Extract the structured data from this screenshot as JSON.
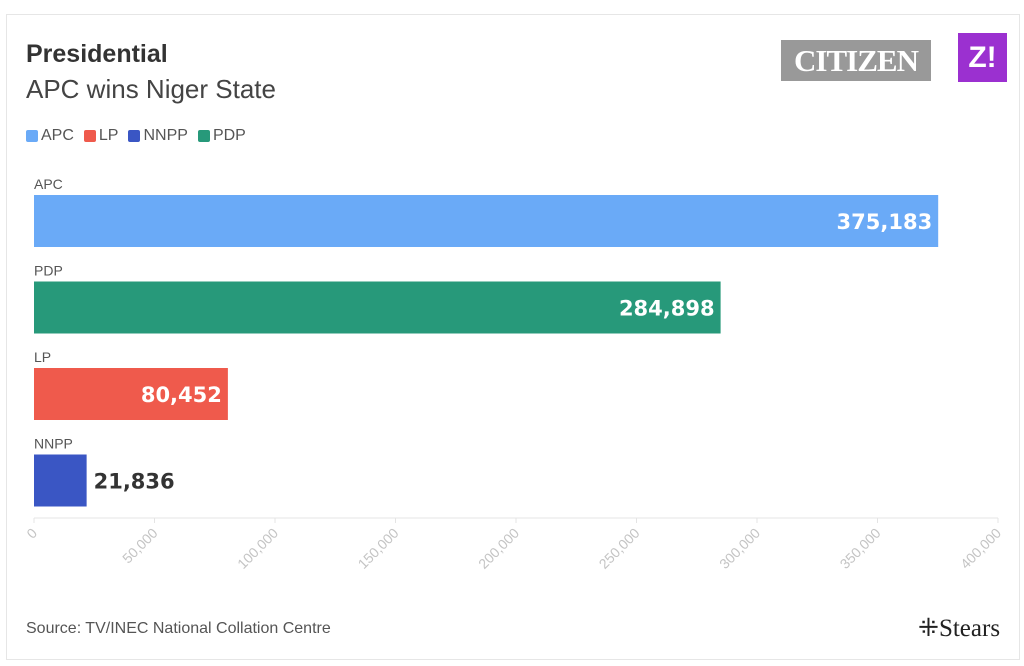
{
  "header": {
    "title": "Presidential",
    "subtitle": "APC wins Niger State"
  },
  "logos": {
    "citizen": "CITIZEN",
    "z": "Z!",
    "stears": "Stears"
  },
  "source": "Source: TV/INEC National Collation Centre",
  "chart_data": {
    "type": "bar",
    "orientation": "horizontal",
    "title": "Presidential",
    "subtitle": "APC wins Niger State",
    "legend": [
      {
        "name": "APC",
        "color": "#6aaaf7"
      },
      {
        "name": "LP",
        "color": "#ef5a4c"
      },
      {
        "name": "NNPP",
        "color": "#3a56c4"
      },
      {
        "name": "PDP",
        "color": "#27997a"
      }
    ],
    "categories": [
      "APC",
      "PDP",
      "LP",
      "NNPP"
    ],
    "values": [
      375183,
      284898,
      80452,
      21836
    ],
    "value_labels": [
      "375,183",
      "284,898",
      "80,452",
      "21,836"
    ],
    "colors": [
      "#6aaaf7",
      "#27997a",
      "#ef5a4c",
      "#3a56c4"
    ],
    "xlim": [
      0,
      400000
    ],
    "ticks": [
      0,
      50000,
      100000,
      150000,
      200000,
      250000,
      300000,
      350000,
      400000
    ],
    "tick_labels": [
      "0",
      "50,000",
      "100,000",
      "150,000",
      "200,000",
      "250,000",
      "300,000",
      "350,000",
      "400,000"
    ]
  }
}
